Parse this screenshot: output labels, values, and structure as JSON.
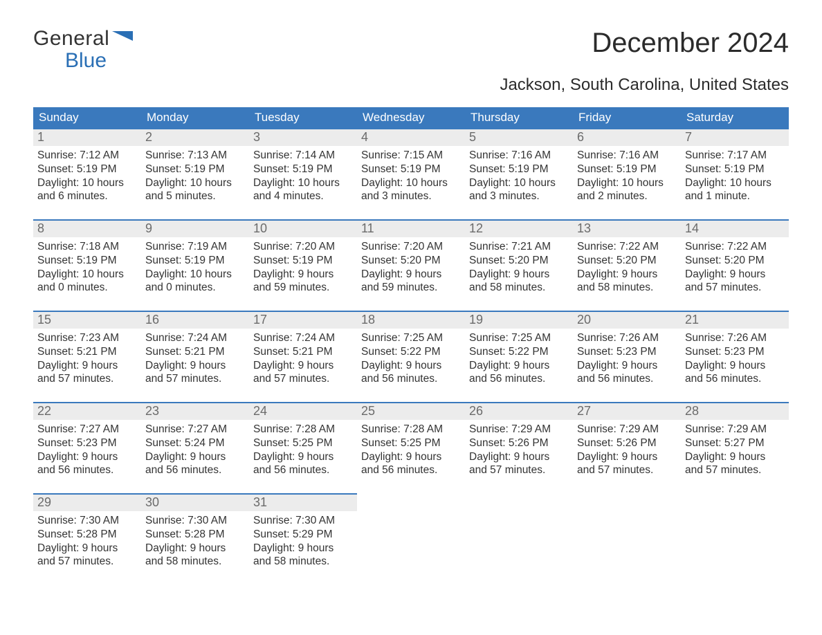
{
  "brand": {
    "general": "General",
    "blue": "Blue",
    "accent_color": "#2a6fb5"
  },
  "title": "December 2024",
  "subtitle": "Jackson, South Carolina, United States",
  "header_bg": "#3a79bd",
  "daynum_bg": "#ececec",
  "row_border_color": "#3a79bd",
  "weekdays": [
    "Sunday",
    "Monday",
    "Tuesday",
    "Wednesday",
    "Thursday",
    "Friday",
    "Saturday"
  ],
  "weeks": [
    [
      {
        "n": "1",
        "sunrise": "Sunrise: 7:12 AM",
        "sunset": "Sunset: 5:19 PM",
        "daylight1": "Daylight: 10 hours",
        "daylight2": "and 6 minutes."
      },
      {
        "n": "2",
        "sunrise": "Sunrise: 7:13 AM",
        "sunset": "Sunset: 5:19 PM",
        "daylight1": "Daylight: 10 hours",
        "daylight2": "and 5 minutes."
      },
      {
        "n": "3",
        "sunrise": "Sunrise: 7:14 AM",
        "sunset": "Sunset: 5:19 PM",
        "daylight1": "Daylight: 10 hours",
        "daylight2": "and 4 minutes."
      },
      {
        "n": "4",
        "sunrise": "Sunrise: 7:15 AM",
        "sunset": "Sunset: 5:19 PM",
        "daylight1": "Daylight: 10 hours",
        "daylight2": "and 3 minutes."
      },
      {
        "n": "5",
        "sunrise": "Sunrise: 7:16 AM",
        "sunset": "Sunset: 5:19 PM",
        "daylight1": "Daylight: 10 hours",
        "daylight2": "and 3 minutes."
      },
      {
        "n": "6",
        "sunrise": "Sunrise: 7:16 AM",
        "sunset": "Sunset: 5:19 PM",
        "daylight1": "Daylight: 10 hours",
        "daylight2": "and 2 minutes."
      },
      {
        "n": "7",
        "sunrise": "Sunrise: 7:17 AM",
        "sunset": "Sunset: 5:19 PM",
        "daylight1": "Daylight: 10 hours",
        "daylight2": "and 1 minute."
      }
    ],
    [
      {
        "n": "8",
        "sunrise": "Sunrise: 7:18 AM",
        "sunset": "Sunset: 5:19 PM",
        "daylight1": "Daylight: 10 hours",
        "daylight2": "and 0 minutes."
      },
      {
        "n": "9",
        "sunrise": "Sunrise: 7:19 AM",
        "sunset": "Sunset: 5:19 PM",
        "daylight1": "Daylight: 10 hours",
        "daylight2": "and 0 minutes."
      },
      {
        "n": "10",
        "sunrise": "Sunrise: 7:20 AM",
        "sunset": "Sunset: 5:19 PM",
        "daylight1": "Daylight: 9 hours",
        "daylight2": "and 59 minutes."
      },
      {
        "n": "11",
        "sunrise": "Sunrise: 7:20 AM",
        "sunset": "Sunset: 5:20 PM",
        "daylight1": "Daylight: 9 hours",
        "daylight2": "and 59 minutes."
      },
      {
        "n": "12",
        "sunrise": "Sunrise: 7:21 AM",
        "sunset": "Sunset: 5:20 PM",
        "daylight1": "Daylight: 9 hours",
        "daylight2": "and 58 minutes."
      },
      {
        "n": "13",
        "sunrise": "Sunrise: 7:22 AM",
        "sunset": "Sunset: 5:20 PM",
        "daylight1": "Daylight: 9 hours",
        "daylight2": "and 58 minutes."
      },
      {
        "n": "14",
        "sunrise": "Sunrise: 7:22 AM",
        "sunset": "Sunset: 5:20 PM",
        "daylight1": "Daylight: 9 hours",
        "daylight2": "and 57 minutes."
      }
    ],
    [
      {
        "n": "15",
        "sunrise": "Sunrise: 7:23 AM",
        "sunset": "Sunset: 5:21 PM",
        "daylight1": "Daylight: 9 hours",
        "daylight2": "and 57 minutes."
      },
      {
        "n": "16",
        "sunrise": "Sunrise: 7:24 AM",
        "sunset": "Sunset: 5:21 PM",
        "daylight1": "Daylight: 9 hours",
        "daylight2": "and 57 minutes."
      },
      {
        "n": "17",
        "sunrise": "Sunrise: 7:24 AM",
        "sunset": "Sunset: 5:21 PM",
        "daylight1": "Daylight: 9 hours",
        "daylight2": "and 57 minutes."
      },
      {
        "n": "18",
        "sunrise": "Sunrise: 7:25 AM",
        "sunset": "Sunset: 5:22 PM",
        "daylight1": "Daylight: 9 hours",
        "daylight2": "and 56 minutes."
      },
      {
        "n": "19",
        "sunrise": "Sunrise: 7:25 AM",
        "sunset": "Sunset: 5:22 PM",
        "daylight1": "Daylight: 9 hours",
        "daylight2": "and 56 minutes."
      },
      {
        "n": "20",
        "sunrise": "Sunrise: 7:26 AM",
        "sunset": "Sunset: 5:23 PM",
        "daylight1": "Daylight: 9 hours",
        "daylight2": "and 56 minutes."
      },
      {
        "n": "21",
        "sunrise": "Sunrise: 7:26 AM",
        "sunset": "Sunset: 5:23 PM",
        "daylight1": "Daylight: 9 hours",
        "daylight2": "and 56 minutes."
      }
    ],
    [
      {
        "n": "22",
        "sunrise": "Sunrise: 7:27 AM",
        "sunset": "Sunset: 5:23 PM",
        "daylight1": "Daylight: 9 hours",
        "daylight2": "and 56 minutes."
      },
      {
        "n": "23",
        "sunrise": "Sunrise: 7:27 AM",
        "sunset": "Sunset: 5:24 PM",
        "daylight1": "Daylight: 9 hours",
        "daylight2": "and 56 minutes."
      },
      {
        "n": "24",
        "sunrise": "Sunrise: 7:28 AM",
        "sunset": "Sunset: 5:25 PM",
        "daylight1": "Daylight: 9 hours",
        "daylight2": "and 56 minutes."
      },
      {
        "n": "25",
        "sunrise": "Sunrise: 7:28 AM",
        "sunset": "Sunset: 5:25 PM",
        "daylight1": "Daylight: 9 hours",
        "daylight2": "and 56 minutes."
      },
      {
        "n": "26",
        "sunrise": "Sunrise: 7:29 AM",
        "sunset": "Sunset: 5:26 PM",
        "daylight1": "Daylight: 9 hours",
        "daylight2": "and 57 minutes."
      },
      {
        "n": "27",
        "sunrise": "Sunrise: 7:29 AM",
        "sunset": "Sunset: 5:26 PM",
        "daylight1": "Daylight: 9 hours",
        "daylight2": "and 57 minutes."
      },
      {
        "n": "28",
        "sunrise": "Sunrise: 7:29 AM",
        "sunset": "Sunset: 5:27 PM",
        "daylight1": "Daylight: 9 hours",
        "daylight2": "and 57 minutes."
      }
    ],
    [
      {
        "n": "29",
        "sunrise": "Sunrise: 7:30 AM",
        "sunset": "Sunset: 5:28 PM",
        "daylight1": "Daylight: 9 hours",
        "daylight2": "and 57 minutes."
      },
      {
        "n": "30",
        "sunrise": "Sunrise: 7:30 AM",
        "sunset": "Sunset: 5:28 PM",
        "daylight1": "Daylight: 9 hours",
        "daylight2": "and 58 minutes."
      },
      {
        "n": "31",
        "sunrise": "Sunrise: 7:30 AM",
        "sunset": "Sunset: 5:29 PM",
        "daylight1": "Daylight: 9 hours",
        "daylight2": "and 58 minutes."
      },
      {
        "empty": true
      },
      {
        "empty": true
      },
      {
        "empty": true
      },
      {
        "empty": true
      }
    ]
  ]
}
